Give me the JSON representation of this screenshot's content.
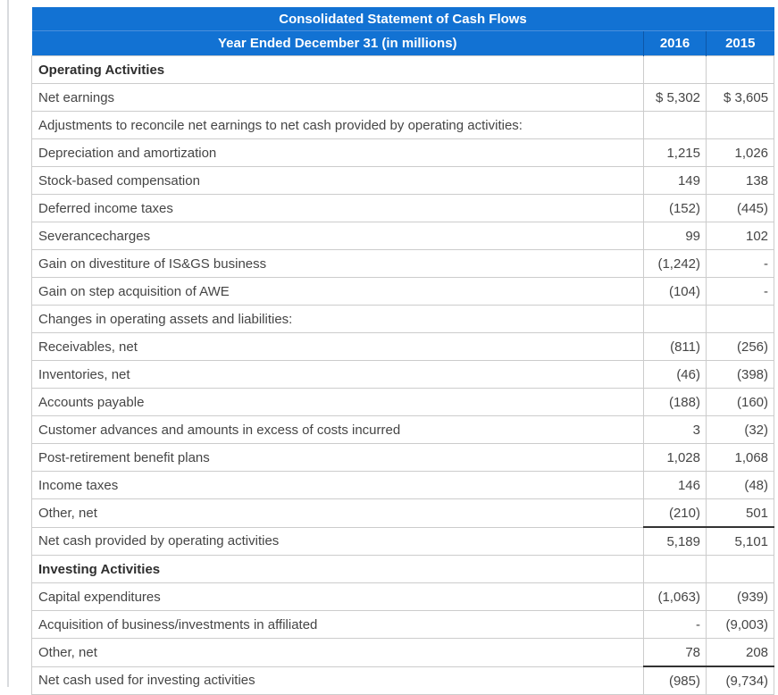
{
  "table": {
    "title": "Consolidated Statement of Cash Flows",
    "subtitle": "Year Ended December 31 (in millions)",
    "columns": [
      "2016",
      "2015"
    ],
    "colors": {
      "header_bg": "#1272d3",
      "header_text": "#ffffff",
      "row_border": "#cccccc",
      "subtotal_border": "#333333",
      "body_text": "#454545"
    },
    "rows": [
      {
        "type": "section",
        "label": "Operating Activities",
        "y2016": "",
        "y2015": ""
      },
      {
        "type": "data",
        "label": "Net earnings",
        "y2016": "$ 5,302",
        "y2015": "$ 3,605"
      },
      {
        "type": "data",
        "label": "Adjustments to reconcile net earnings to net cash provided by operating activities:",
        "y2016": "",
        "y2015": ""
      },
      {
        "type": "data",
        "label": "Depreciation and amortization",
        "y2016": "1,215",
        "y2015": "1,026"
      },
      {
        "type": "data",
        "label": "Stock-based compensation",
        "y2016": "149",
        "y2015": "138"
      },
      {
        "type": "data",
        "label": "Deferred income taxes",
        "y2016": "(152)",
        "y2015": "(445)"
      },
      {
        "type": "data",
        "label": "Severancecharges",
        "y2016": "99",
        "y2015": "102"
      },
      {
        "type": "data",
        "label": "Gain on divestiture of IS&GS business",
        "y2016": "(1,242)",
        "y2015": "-"
      },
      {
        "type": "data",
        "label": "Gain on step acquisition of AWE",
        "y2016": "(104)",
        "y2015": "-"
      },
      {
        "type": "data",
        "label": "Changes in operating assets and liabilities:",
        "y2016": "",
        "y2015": ""
      },
      {
        "type": "data",
        "label": "Receivables, net",
        "y2016": "(811)",
        "y2015": "(256)"
      },
      {
        "type": "data",
        "label": "Inventories, net",
        "y2016": "(46)",
        "y2015": "(398)"
      },
      {
        "type": "data",
        "label": "Accounts payable",
        "y2016": "(188)",
        "y2015": "(160)"
      },
      {
        "type": "data",
        "label": "Customer advances and amounts in excess of costs incurred",
        "y2016": "3",
        "y2015": "(32)"
      },
      {
        "type": "data",
        "label": "Post-retirement benefit plans",
        "y2016": "1,028",
        "y2015": "1,068"
      },
      {
        "type": "data",
        "label": "Income taxes",
        "y2016": "146",
        "y2015": "(48)"
      },
      {
        "type": "data",
        "label": "Other, net",
        "y2016": "(210)",
        "y2015": "501"
      },
      {
        "type": "subtotal",
        "label": "Net cash provided by operating activities",
        "y2016": "5,189",
        "y2015": "5,101"
      },
      {
        "type": "section",
        "label": "Investing Activities",
        "y2016": "",
        "y2015": ""
      },
      {
        "type": "data",
        "label": "Capital expenditures",
        "y2016": "(1,063)",
        "y2015": "(939)"
      },
      {
        "type": "data",
        "label": "Acquisition of business/investments in affiliated",
        "y2016": "-",
        "y2015": "(9,003)"
      },
      {
        "type": "data",
        "label": "Other, net",
        "y2016": "78",
        "y2015": "208"
      },
      {
        "type": "subtotal",
        "label": "Net cash used for investing activities",
        "y2016": "(985)",
        "y2015": "(9,734)"
      }
    ]
  }
}
